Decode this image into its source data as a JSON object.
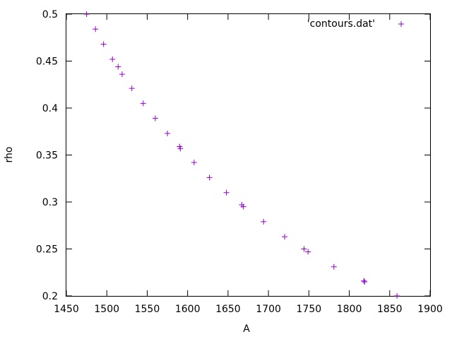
{
  "chart_data": {
    "type": "scatter",
    "xlabel": "A",
    "ylabel": "rho",
    "xlim": [
      1450,
      1900
    ],
    "ylim": [
      0.2,
      0.5
    ],
    "xticks": [
      1450,
      1500,
      1550,
      1600,
      1650,
      1700,
      1750,
      1800,
      1850,
      1900
    ],
    "xtick_labels": [
      "1450",
      "1500",
      "1550",
      "1600",
      "1650",
      "1700",
      "1750",
      "1800",
      "1850",
      "1900"
    ],
    "yticks": [
      0.2,
      0.25,
      0.3,
      0.35,
      0.4,
      0.45,
      0.5
    ],
    "ytick_labels": [
      "0.2",
      "0.25",
      "0.3",
      "0.35",
      "0.4",
      "0.45",
      "0.5"
    ],
    "grid": false,
    "legend_position": "top-right",
    "marker": "+",
    "color": "#9400d3",
    "series": [
      {
        "name": "'contours.dat'",
        "x": [
          1475,
          1486,
          1496,
          1507,
          1514,
          1519,
          1531,
          1545,
          1560,
          1575,
          1590,
          1591,
          1608,
          1627,
          1648,
          1667,
          1669,
          1694,
          1720,
          1744,
          1749,
          1781,
          1818,
          1819,
          1859
        ],
        "y": [
          0.5,
          0.484,
          0.468,
          0.452,
          0.444,
          0.436,
          0.421,
          0.405,
          0.389,
          0.373,
          0.359,
          0.357,
          0.342,
          0.326,
          0.31,
          0.297,
          0.295,
          0.279,
          0.263,
          0.25,
          0.247,
          0.231,
          0.216,
          0.215,
          0.2
        ]
      }
    ]
  }
}
